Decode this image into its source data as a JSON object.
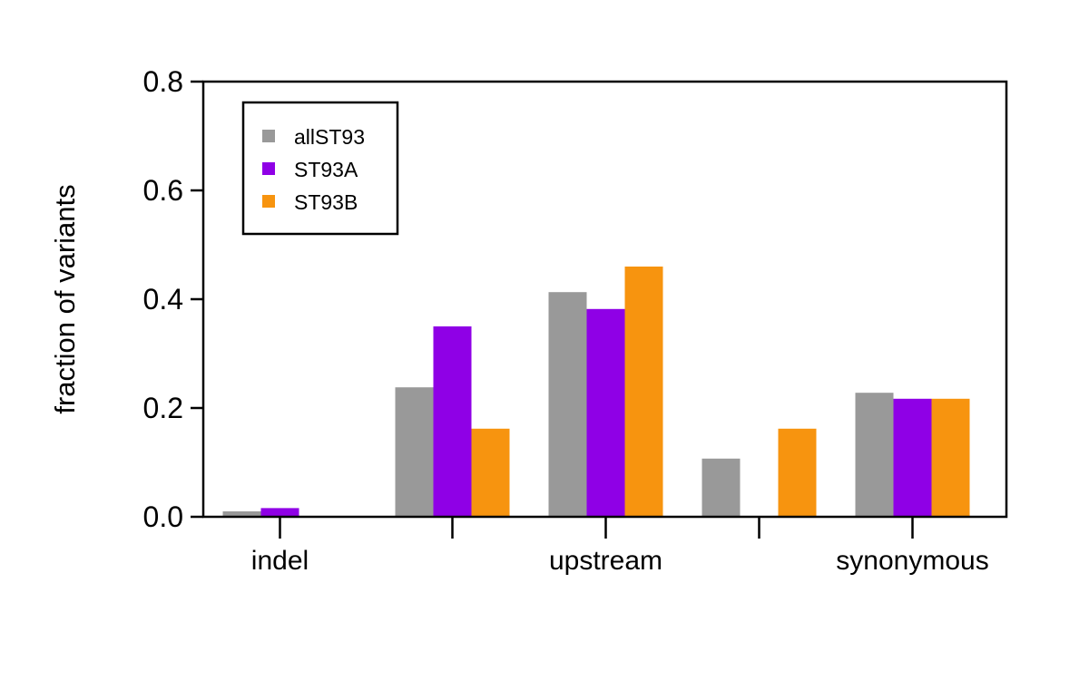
{
  "chart_data": {
    "type": "bar",
    "title": "",
    "xlabel": "",
    "ylabel": "fraction of variants",
    "ylim": [
      0,
      0.8
    ],
    "yticks": [
      "0.0",
      "0.2",
      "0.4",
      "0.6",
      "0.8"
    ],
    "categories": [
      "indel",
      "",
      "upstream",
      "",
      "synonymous"
    ],
    "series": [
      {
        "name": "allST93",
        "color": "#999999",
        "values": [
          0.01,
          0.238,
          0.413,
          0.107,
          0.228
        ]
      },
      {
        "name": "ST93A",
        "color": "#8F00E6",
        "values": [
          0.016,
          0.35,
          0.382,
          0.0,
          0.217
        ]
      },
      {
        "name": "ST93B",
        "color": "#F7940F",
        "values": [
          0.0,
          0.162,
          0.46,
          0.162,
          0.217
        ]
      }
    ],
    "legend_position": "top-left",
    "grid": false
  }
}
